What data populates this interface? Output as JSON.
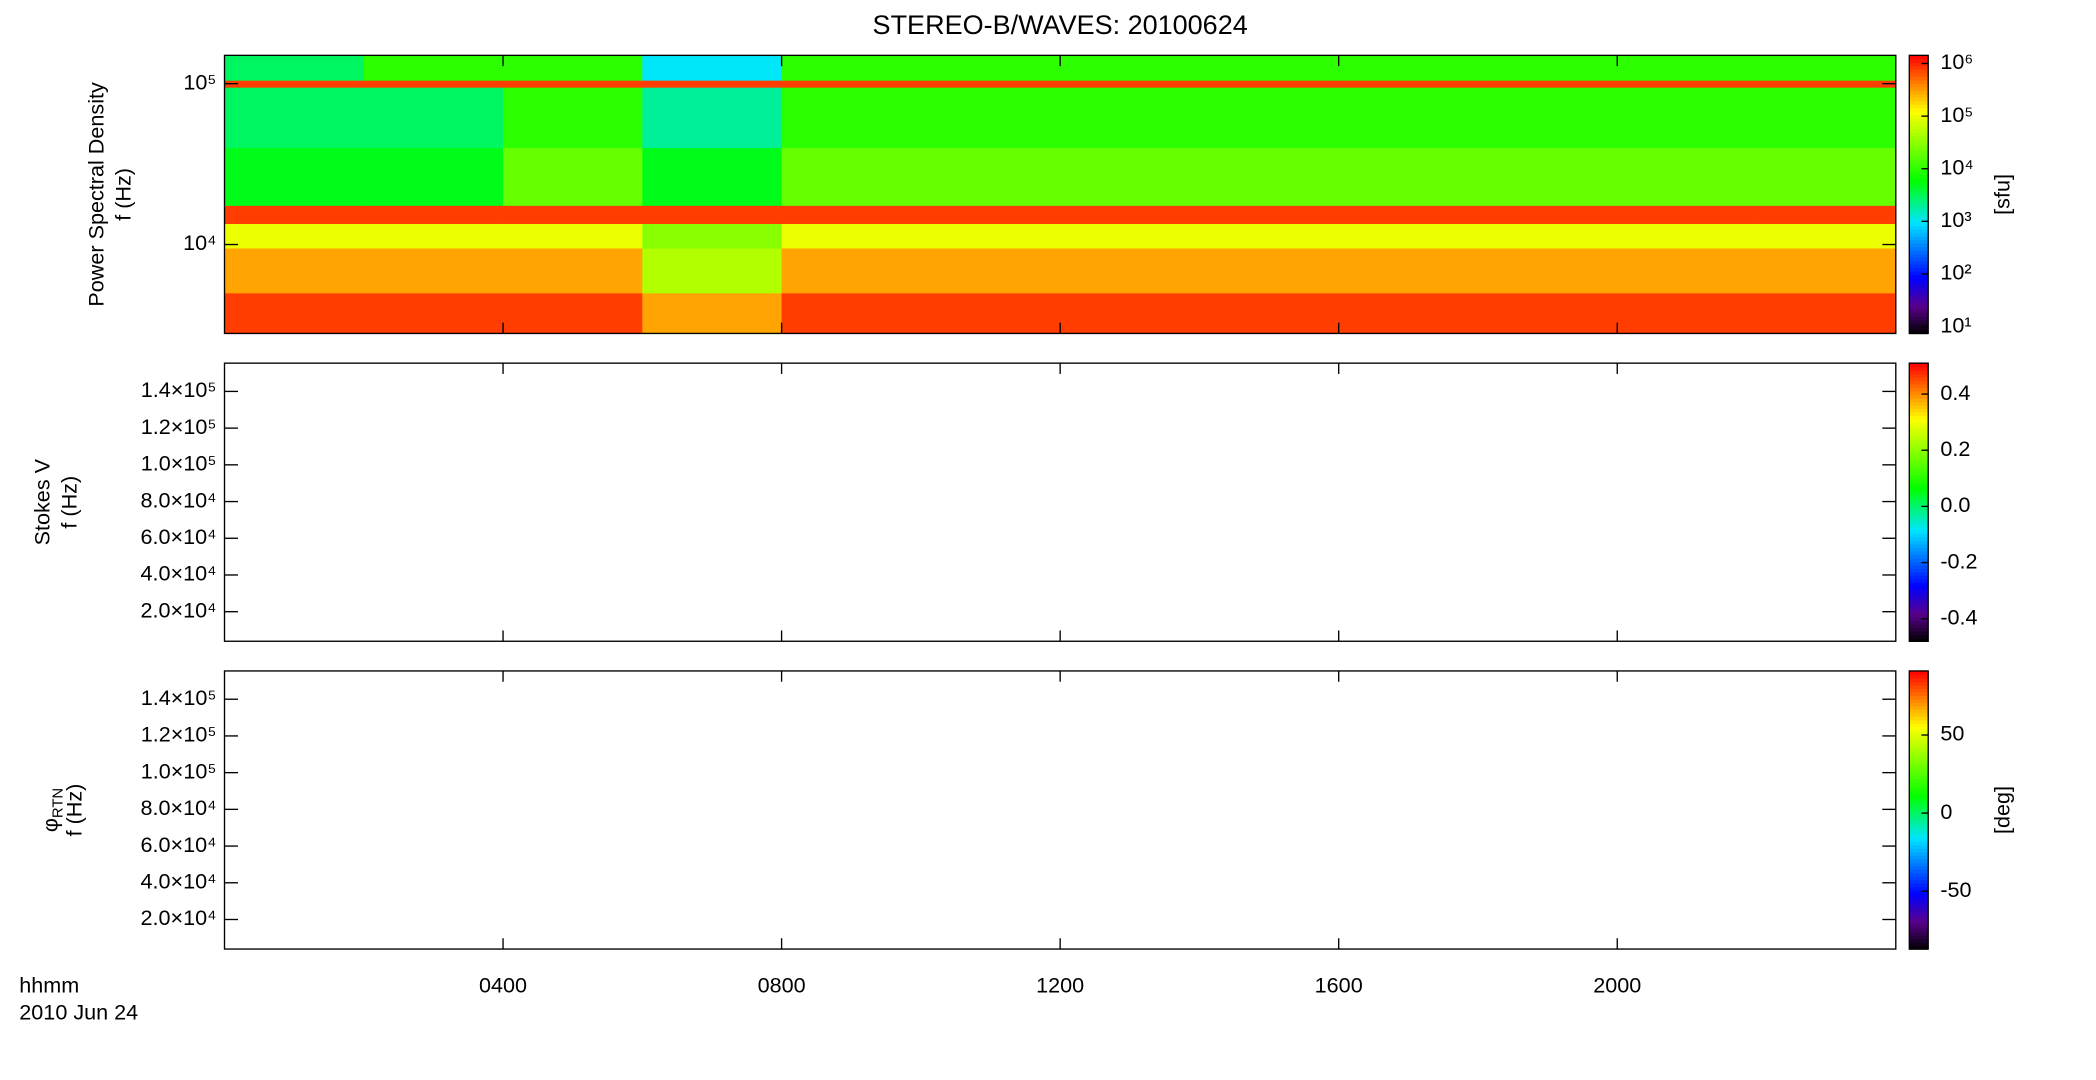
{
  "chart_data": [
    {
      "type": "heatmap",
      "title": "STEREO-B/WAVES: 20100624",
      "ylabel": "Power Spectral Density",
      "ylabel2": "f (Hz)",
      "xlim": [
        0,
        24
      ],
      "xticks": [
        4,
        8,
        12,
        16,
        20
      ],
      "ylog": true,
      "ylim": [
        2800,
        150000
      ],
      "yticks": [
        {
          "value": 10000,
          "label": "10⁴"
        },
        {
          "value": 100000,
          "label": "10⁵"
        }
      ],
      "x_edges": [
        0,
        2,
        4,
        6,
        8,
        10,
        12,
        14,
        16,
        18,
        20,
        22,
        24
      ],
      "y_edges": [
        2800,
        5000,
        9500,
        13500,
        17500,
        40000,
        95000,
        105000,
        150000
      ],
      "z": [
        [
          800000,
          800000,
          800000,
          300000,
          800000,
          800000,
          800000,
          800000,
          800000,
          800000,
          800000,
          800000
        ],
        [
          300000,
          300000,
          300000,
          50000,
          300000,
          300000,
          300000,
          300000,
          300000,
          300000,
          300000,
          300000
        ],
        [
          100000,
          100000,
          100000,
          30000,
          100000,
          100000,
          100000,
          100000,
          100000,
          100000,
          100000,
          100000
        ],
        [
          800000,
          800000,
          800000,
          800000,
          800000,
          800000,
          800000,
          800000,
          800000,
          800000,
          800000,
          800000
        ],
        [
          5000,
          5000,
          20000,
          5000,
          20000,
          20000,
          20000,
          20000,
          20000,
          20000,
          20000,
          20000
        ],
        [
          3000,
          3000,
          10000,
          2000,
          10000,
          10000,
          10000,
          10000,
          10000,
          10000,
          10000,
          10000
        ],
        [
          800000,
          800000,
          800000,
          800000,
          800000,
          800000,
          800000,
          800000,
          800000,
          800000,
          800000,
          800000
        ],
        [
          3000,
          10000,
          10000,
          1000,
          10000,
          10000,
          10000,
          10000,
          10000,
          10000,
          10000,
          10000
        ]
      ],
      "clog": true,
      "clim": [
        7.4,
        1430000
      ],
      "cticks": [
        {
          "value": 10,
          "label": "10¹"
        },
        {
          "value": 100,
          "label": "10²"
        },
        {
          "value": 1000,
          "label": "10³"
        },
        {
          "value": 10000,
          "label": "10⁴"
        },
        {
          "value": 100000,
          "label": "10⁵"
        },
        {
          "value": 1000000,
          "label": "10⁶"
        }
      ],
      "clabel": "[sfu]"
    },
    {
      "type": "heatmap",
      "ylabel": "Stokes V",
      "ylabel2": "f (Hz)",
      "xlim": [
        0,
        24
      ],
      "xticks": [
        4,
        8,
        12,
        16,
        20
      ],
      "ylim": [
        3900,
        155400
      ],
      "yticks": [
        {
          "value": 20000,
          "label": "2.0×10⁴"
        },
        {
          "value": 40000,
          "label": "4.0×10⁴"
        },
        {
          "value": 60000,
          "label": "6.0×10⁴"
        },
        {
          "value": 80000,
          "label": "8.0×10⁴"
        },
        {
          "value": 100000,
          "label": "1.0×10⁵"
        },
        {
          "value": 120000,
          "label": "1.2×10⁵"
        },
        {
          "value": 140000,
          "label": "1.4×10⁵"
        }
      ],
      "clim": [
        -0.48,
        0.51
      ],
      "cticks": [
        -0.4,
        -0.2,
        {
          "value": 0,
          "label": "0.0"
        },
        0.2,
        0.4
      ]
    },
    {
      "type": "heatmap",
      "ylabel": "φ",
      "ylabel_sub": "RTN",
      "ylabel2": "f (Hz)",
      "xlim": [
        0,
        24
      ],
      "xticks": [
        {
          "value": 4,
          "label": "0400"
        },
        {
          "value": 8,
          "label": "0800"
        },
        {
          "value": 12,
          "label": "1200"
        },
        {
          "value": 16,
          "label": "1600"
        },
        {
          "value": 20,
          "label": "2000"
        }
      ],
      "xlabel": "hhmm",
      "date": "2010 Jun 24",
      "ylim": [
        3900,
        155400
      ],
      "yticks": [
        {
          "value": 20000,
          "label": "2.0×10⁴"
        },
        {
          "value": 40000,
          "label": "4.0×10⁴"
        },
        {
          "value": 60000,
          "label": "6.0×10⁴"
        },
        {
          "value": 80000,
          "label": "8.0×10⁴"
        },
        {
          "value": 100000,
          "label": "1.0×10⁵"
        },
        {
          "value": 120000,
          "label": "1.2×10⁵"
        },
        {
          "value": 140000,
          "label": "1.4×10⁵"
        }
      ],
      "clim": [
        -87,
        91
      ],
      "cticks": [
        -50,
        0,
        50
      ],
      "clabel": "[deg]"
    }
  ]
}
